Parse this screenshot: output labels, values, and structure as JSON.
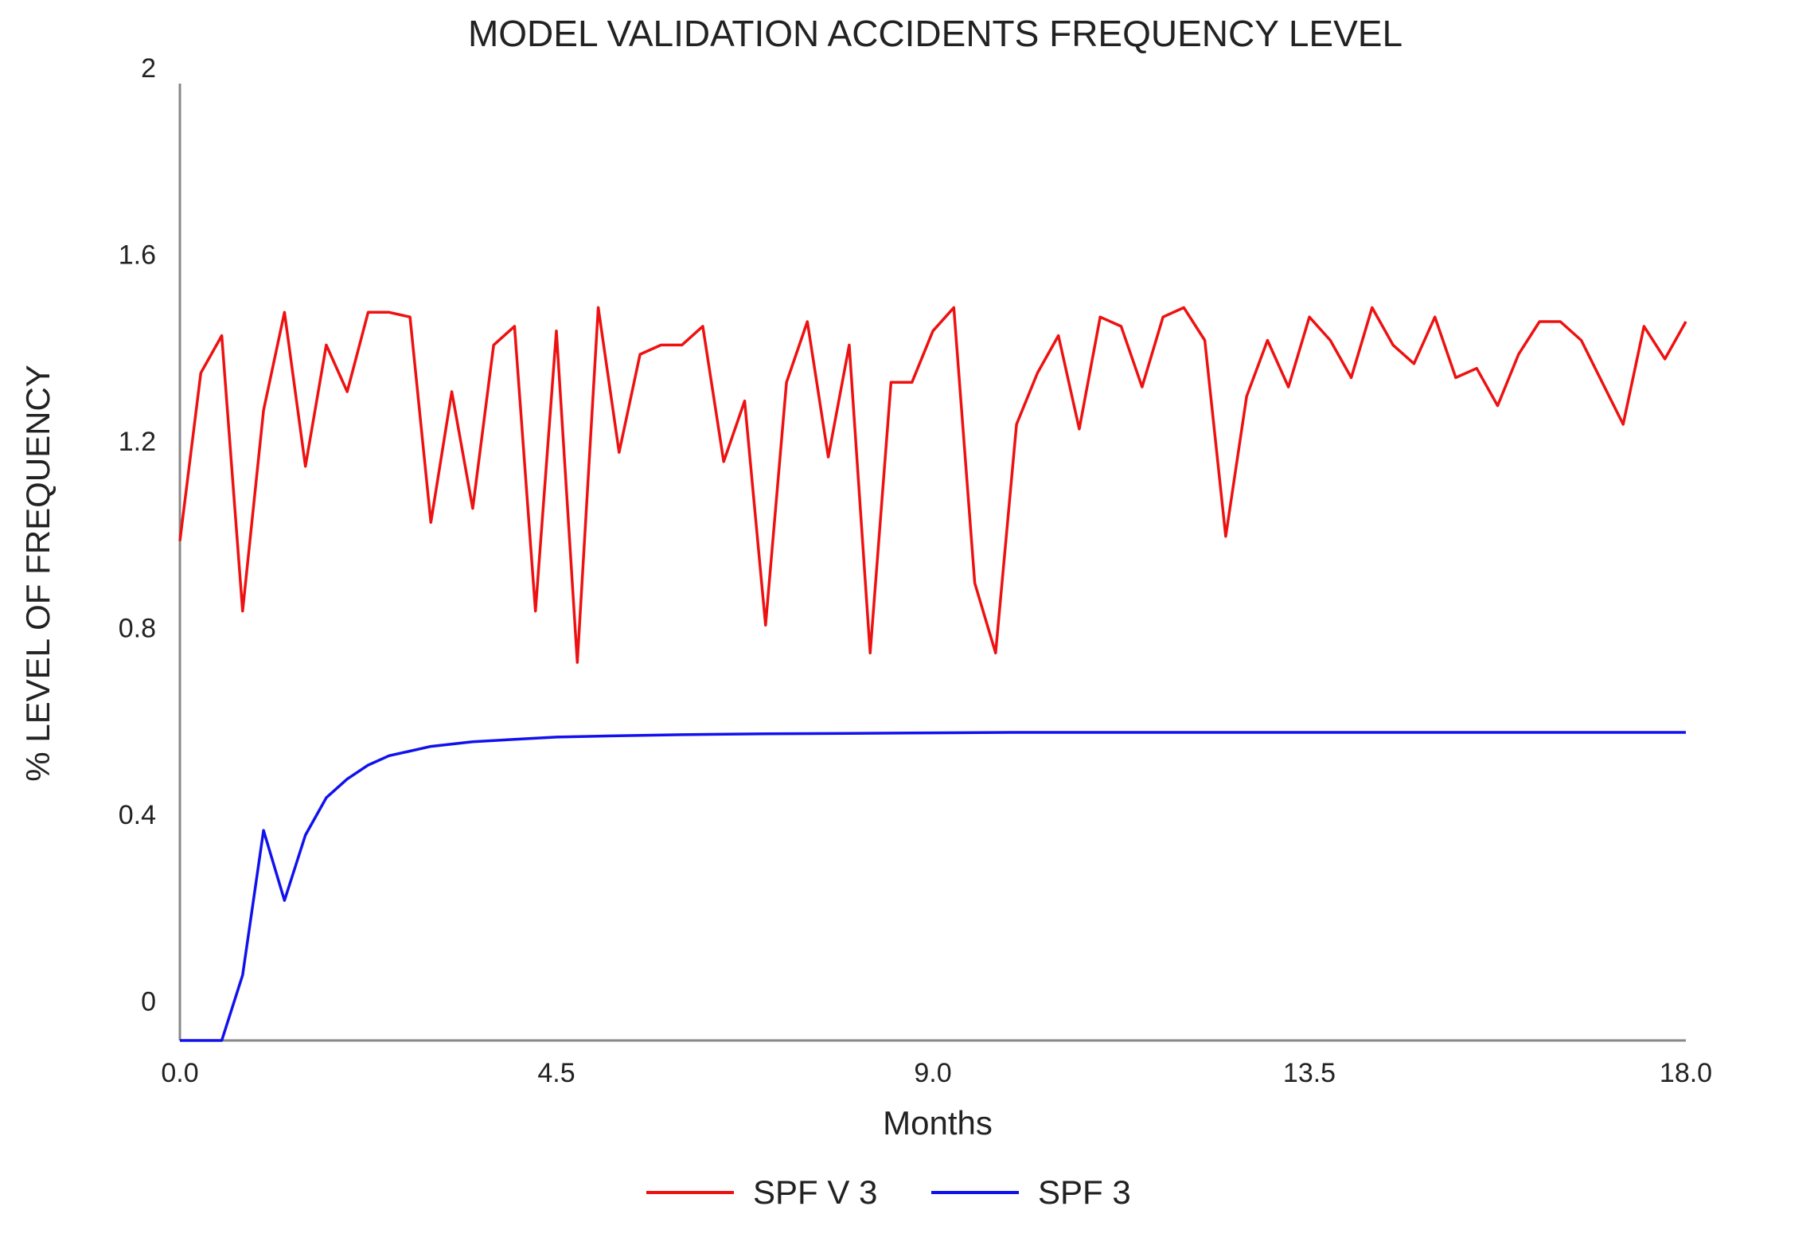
{
  "chart_data": {
    "type": "line",
    "title": "MODEL VALIDATION ACCIDENTS FREQUENCY LEVEL",
    "xlabel": "Months",
    "ylabel": "% LEVEL OF FREQUENCY",
    "xlim": [
      0,
      18
    ],
    "ylim": [
      -0.05,
      2
    ],
    "xticks": [
      0,
      4.5,
      9,
      13.5,
      18
    ],
    "xtick_labels": [
      "0.0",
      "4.5",
      "9.0",
      "13.5",
      "18.0"
    ],
    "yticks": [
      0,
      0.4,
      0.8,
      1.2,
      1.6,
      2
    ],
    "ytick_labels": [
      "0",
      "0.4",
      "0.8",
      "1.2",
      "1.6",
      "2"
    ],
    "legend_position": "bottom",
    "series": [
      {
        "name": "SPF V 3",
        "color": "#ee1111",
        "x": [
          0.0,
          0.25,
          0.5,
          0.75,
          1.0,
          1.25,
          1.5,
          1.75,
          2.0,
          2.25,
          2.5,
          2.75,
          3.0,
          3.25,
          3.5,
          3.75,
          4.0,
          4.25,
          4.5,
          4.75,
          5.0,
          5.25,
          5.5,
          5.75,
          6.0,
          6.25,
          6.5,
          6.75,
          7.0,
          7.25,
          7.5,
          7.75,
          8.0,
          8.25,
          8.5,
          8.75,
          9.0,
          9.25,
          9.5,
          9.75,
          10.0,
          10.25,
          10.5,
          10.75,
          11.0,
          11.25,
          11.5,
          11.75,
          12.0,
          12.25,
          12.5,
          12.75,
          13.0,
          13.25,
          13.5,
          13.75,
          14.0,
          14.25,
          14.5,
          14.75,
          15.0,
          15.25,
          15.5,
          15.75,
          16.0,
          16.25,
          16.5,
          16.75,
          17.0,
          17.25,
          17.5,
          17.75,
          18.0
        ],
        "values": [
          1.02,
          1.38,
          1.46,
          0.87,
          1.3,
          1.51,
          1.18,
          1.44,
          1.34,
          1.51,
          1.51,
          1.5,
          1.06,
          1.34,
          1.09,
          1.44,
          1.48,
          0.87,
          1.47,
          0.76,
          1.52,
          1.21,
          1.42,
          1.44,
          1.44,
          1.48,
          1.19,
          1.32,
          0.84,
          1.36,
          1.49,
          1.2,
          1.44,
          0.78,
          1.36,
          1.36,
          1.47,
          1.52,
          0.93,
          0.78,
          1.27,
          1.38,
          1.46,
          1.26,
          1.5,
          1.48,
          1.35,
          1.5,
          1.52,
          1.45,
          1.03,
          1.33,
          1.45,
          1.35,
          1.5,
          1.45,
          1.37,
          1.52,
          1.44,
          1.4,
          1.5,
          1.37,
          1.39,
          1.31,
          1.42,
          1.49,
          1.49,
          1.45,
          1.36,
          1.27,
          1.48,
          1.41,
          1.49
        ]
      },
      {
        "name": "SPF 3",
        "color": "#1111ee",
        "x": [
          0.0,
          0.25,
          0.5,
          0.75,
          1.0,
          1.25,
          1.5,
          1.75,
          2.0,
          2.25,
          2.5,
          2.75,
          3.0,
          3.5,
          4.0,
          4.5,
          5.0,
          6.0,
          7.0,
          8.0,
          9.0,
          10.0,
          11.0,
          12.0,
          13.0,
          14.0,
          15.0,
          16.0,
          17.0,
          18.0
        ],
        "values": [
          -0.05,
          -0.05,
          -0.05,
          0.09,
          0.4,
          0.25,
          0.39,
          0.47,
          0.51,
          0.54,
          0.56,
          0.57,
          0.58,
          0.59,
          0.595,
          0.6,
          0.602,
          0.605,
          0.607,
          0.608,
          0.609,
          0.61,
          0.61,
          0.61,
          0.61,
          0.61,
          0.61,
          0.61,
          0.61,
          0.61
        ]
      }
    ]
  }
}
